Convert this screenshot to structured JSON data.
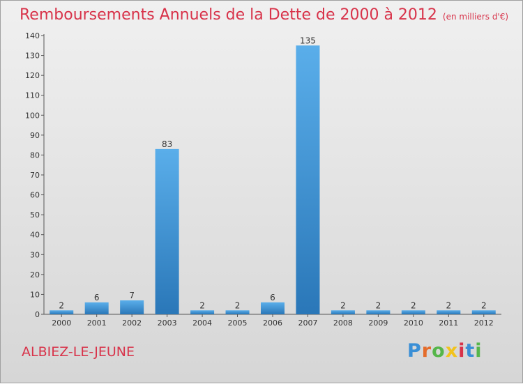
{
  "title": "Remboursements Annuels de la Dette de 2000 à 2012",
  "unit": "(en milliers d'€)",
  "commune": "ALBIEZ-LE-JEUNE",
  "logo_text": "Proxiti",
  "colors": {
    "title": "#d8334a",
    "bar_top": "#5aaeea",
    "bar_bottom": "#2a77b8"
  },
  "chart_data": {
    "type": "bar",
    "categories": [
      "2000",
      "2001",
      "2002",
      "2003",
      "2004",
      "2005",
      "2006",
      "2007",
      "2008",
      "2009",
      "2010",
      "2011",
      "2012"
    ],
    "values": [
      2,
      6,
      7,
      83,
      2,
      2,
      6,
      135,
      2,
      2,
      2,
      2,
      2
    ],
    "ylim": [
      0,
      140
    ],
    "yticks": [
      0,
      10,
      20,
      30,
      40,
      50,
      60,
      70,
      80,
      90,
      100,
      110,
      120,
      130,
      140
    ],
    "grid": false
  }
}
